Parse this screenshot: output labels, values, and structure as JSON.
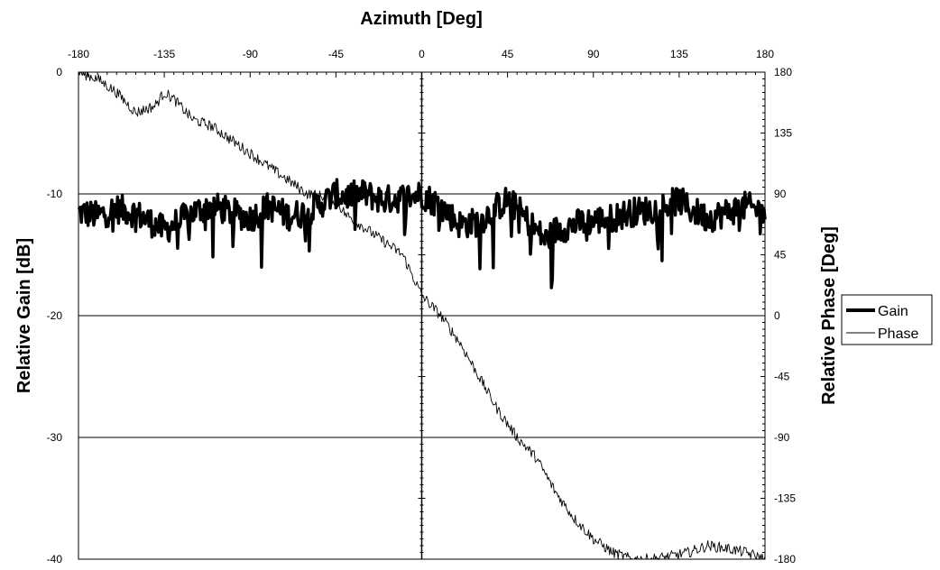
{
  "chart_data": {
    "type": "line",
    "title": "",
    "xlabel": "Azimuth [Deg]",
    "ylabel_left": "Relative Gain [dB]",
    "ylabel_right": "Relative Phase [Deg]",
    "xlim": [
      -180,
      180
    ],
    "ylim_left": [
      -40,
      0
    ],
    "ylim_right": [
      -180,
      180
    ],
    "x_ticks": [
      "-180",
      "-135",
      "-90",
      "-45",
      "0",
      "45",
      "90",
      "135",
      "180"
    ],
    "y_ticks_left": [
      "0",
      "-10",
      "-20",
      "-30",
      "-40"
    ],
    "y_ticks_right": [
      "180",
      "135",
      "90",
      "45",
      "0",
      "-45",
      "-90",
      "-135",
      "-180"
    ],
    "grid": "horizontal at -10, -20, -30 dB",
    "legend_position": "right",
    "series": [
      {
        "name": "Gain",
        "axis": "left",
        "color": "#000000",
        "style": "thick",
        "x": [
          -180,
          -170,
          -160,
          -150,
          -140,
          -135,
          -130,
          -120,
          -110,
          -100,
          -90,
          -80,
          -70,
          -60,
          -50,
          -45,
          -40,
          -30,
          -20,
          -10,
          0,
          10,
          20,
          30,
          40,
          45,
          50,
          60,
          65,
          70,
          80,
          90,
          100,
          110,
          120,
          130,
          135,
          140,
          150,
          160,
          170,
          180
        ],
        "values": [
          -11.5,
          -11.8,
          -11.2,
          -11.6,
          -12.5,
          -13,
          -12.5,
          -11.5,
          -11.0,
          -11.5,
          -12.0,
          -11.0,
          -11.8,
          -11.5,
          -10.5,
          -10.0,
          -10.2,
          -10.0,
          -10.5,
          -10.3,
          -10.0,
          -11.0,
          -12.5,
          -12.3,
          -11.0,
          -10.5,
          -11.2,
          -13.0,
          -13.8,
          -13.0,
          -12.5,
          -12.2,
          -12.0,
          -11.5,
          -11.3,
          -10.8,
          -10.5,
          -11.2,
          -12.0,
          -11.5,
          -11.0,
          -11.5
        ]
      },
      {
        "name": "Phase",
        "axis": "right",
        "color": "#000000",
        "style": "thin",
        "x": [
          -180,
          -170,
          -160,
          -150,
          -140,
          -135,
          -130,
          -120,
          -110,
          -100,
          -90,
          -80,
          -70,
          -60,
          -50,
          -45,
          -40,
          -30,
          -20,
          -10,
          0,
          10,
          20,
          30,
          40,
          50,
          60,
          70,
          80,
          90,
          100,
          110,
          120,
          130,
          140,
          150,
          160,
          170,
          180
        ],
        "values": [
          180,
          175,
          165,
          150,
          155,
          165,
          160,
          145,
          140,
          130,
          120,
          110,
          100,
          90,
          88,
          85,
          75,
          65,
          55,
          45,
          15,
          0,
          -20,
          -45,
          -70,
          -90,
          -105,
          -130,
          -150,
          -165,
          -175,
          -180,
          -180,
          -178,
          -175,
          -170,
          -172,
          -175,
          -180
        ]
      }
    ]
  }
}
